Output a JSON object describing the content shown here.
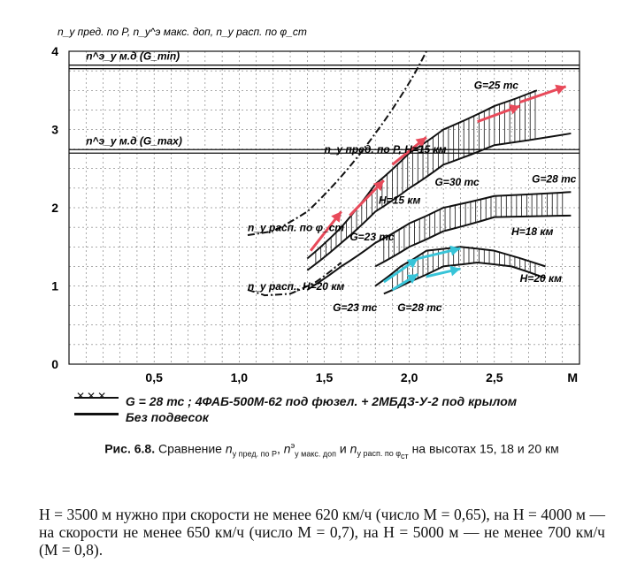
{
  "chart_data": {
    "type": "line",
    "title": "",
    "ylabel": "n_y пред. по P, n_y^э макс. доп, n_y расп. по φ_ст",
    "xlabel": "M",
    "xlim": [
      0,
      3
    ],
    "ylim": [
      0,
      4
    ],
    "x_ticks": [
      "0,5",
      "1,0",
      "1,5",
      "2,0",
      "2,5"
    ],
    "x_tick_values": [
      0.5,
      1.0,
      1.5,
      2.0,
      2.5
    ],
    "y_ticks": [
      "0",
      "1",
      "2",
      "3",
      "4"
    ],
    "y_tick_values": [
      0,
      1,
      2,
      3,
      4
    ],
    "grid": true,
    "hlines": [
      {
        "label": "n^э_y м.д (G_min)",
        "y": 3.8
      },
      {
        "label": "n^э_y м.д (G_max)",
        "y": 2.72
      }
    ],
    "series": [
      {
        "name": "n_y расп. по φ_ст, H=15 км",
        "x": [
          1.05,
          1.2,
          1.4,
          1.6,
          1.8,
          2.0,
          2.1
        ],
        "y": [
          1.65,
          1.7,
          1.95,
          2.4,
          2.95,
          3.6,
          4.0
        ]
      },
      {
        "name": "n_y расп. по φ_ст, H=20 км",
        "x": [
          1.05,
          1.15,
          1.3,
          1.45,
          1.6
        ],
        "y": [
          0.95,
          0.88,
          0.9,
          1.05,
          1.3
        ]
      },
      {
        "name": "H=15 км, G=25 тс",
        "x": [
          1.4,
          1.6,
          1.8,
          2.0,
          2.2,
          2.5,
          2.75
        ],
        "y": [
          1.35,
          1.75,
          2.3,
          2.7,
          3.0,
          3.3,
          3.5
        ]
      },
      {
        "name": "H=15 км, G=30 тс",
        "x": [
          1.4,
          1.6,
          1.8,
          2.0,
          2.2,
          2.5,
          2.95
        ],
        "y": [
          1.2,
          1.55,
          1.95,
          2.25,
          2.55,
          2.8,
          2.95
        ]
      },
      {
        "name": "H=18 км, G=23 тс",
        "x": [
          1.4,
          1.6,
          1.8,
          2.0,
          2.2,
          2.5,
          2.95
        ],
        "y": [
          0.95,
          1.25,
          1.55,
          1.8,
          2.0,
          2.15,
          2.2
        ]
      },
      {
        "name": "H=18 км, G=28 тс",
        "x": [
          1.8,
          2.0,
          2.2,
          2.5,
          2.95
        ],
        "y": [
          1.25,
          1.5,
          1.7,
          1.88,
          1.9
        ]
      },
      {
        "name": "H=20 км, G=23 тс",
        "x": [
          1.8,
          1.95,
          2.1,
          2.3,
          2.5,
          2.8
        ],
        "y": [
          1.0,
          1.25,
          1.45,
          1.5,
          1.45,
          1.25
        ]
      },
      {
        "name": "H=20 км, G=28 тс",
        "x": [
          1.85,
          2.0,
          2.2,
          2.4,
          2.6,
          2.8
        ],
        "y": [
          0.9,
          1.05,
          1.25,
          1.3,
          1.25,
          1.1
        ]
      }
    ],
    "annotations": [
      {
        "text": "G=25 тс",
        "x": 2.38,
        "y": 3.52
      },
      {
        "text": "n_y пред. по P, H=15 км",
        "x": 1.5,
        "y": 2.7
      },
      {
        "text": "H=15 км",
        "x": 1.82,
        "y": 2.05
      },
      {
        "text": "G=30 тс",
        "x": 2.15,
        "y": 2.28
      },
      {
        "text": "G=28 тс",
        "x": 2.72,
        "y": 2.32
      },
      {
        "text": "G=23 тс",
        "x": 1.65,
        "y": 1.58
      },
      {
        "text": "H=18 км",
        "x": 2.6,
        "y": 1.65
      },
      {
        "text": "H=20 км",
        "x": 2.65,
        "y": 1.05
      },
      {
        "text": "G=23 тс",
        "x": 1.55,
        "y": 0.68
      },
      {
        "text": "G=28 тс",
        "x": 1.93,
        "y": 0.68
      },
      {
        "text": "n_y расп. по φ_ст",
        "x": 1.05,
        "y": 1.7
      },
      {
        "text": "n_y расп., H=20 км",
        "x": 1.05,
        "y": 0.95
      }
    ],
    "legend": [
      {
        "symbol": "crosses",
        "text": "G = 28 тс ; 4ФАБ-500М-62 под фюзел. + 2МБДЗ-У-2 под крылом"
      },
      {
        "symbol": "solid",
        "text": "Без подвесок"
      }
    ]
  },
  "caption": {
    "lead": "Рис. 6.8.",
    "text1": "Сравнение",
    "t1": "n",
    "t1sub": "y пред. по P",
    "t2": "n",
    "t2sup": "э",
    "t2sub": "y макс. доп",
    "and": "и",
    "t3": "n",
    "t3sub": "y расп. по φ",
    "t3sub2": "ст",
    "text2": "на высотах 15, 18 и 20 км"
  },
  "body": "H = 3500 м нужно при скорости не менее 620 км/ч (число M = 0,65), на H = 4000 м — на скорости не менее 650 км/ч (число M = 0,7), на H = 5000 м — не менее 700 км/ч (M = 0,8)."
}
